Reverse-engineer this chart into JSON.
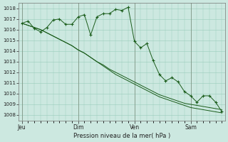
{
  "background_color": "#cce8e0",
  "grid_color": "#99ccbb",
  "line_color": "#1a5c1a",
  "marker_color": "#1a5c1a",
  "xlabel": "Pression niveau de la mer( hPa )",
  "ylim": [
    1007.5,
    1018.5
  ],
  "yticks": [
    1008,
    1009,
    1010,
    1011,
    1012,
    1013,
    1014,
    1015,
    1016,
    1017,
    1018
  ],
  "xtick_labels": [
    "|Jeu",
    "|Dim",
    "|Ven",
    "|Sam"
  ],
  "xtick_positions": [
    0,
    9,
    18,
    27
  ],
  "total_points": 33,
  "series1_y": [
    1016.6,
    1016.4,
    1016.2,
    1016.0,
    1015.7,
    1015.4,
    1015.1,
    1014.8,
    1014.5,
    1014.1,
    1013.8,
    1013.4,
    1013.0,
    1012.7,
    1012.3,
    1012.0,
    1011.7,
    1011.4,
    1011.1,
    1010.8,
    1010.5,
    1010.2,
    1009.9,
    1009.7,
    1009.5,
    1009.3,
    1009.1,
    1009.0,
    1008.9,
    1008.8,
    1008.7,
    1008.6,
    1008.5
  ],
  "series2_y": [
    1016.6,
    1016.4,
    1016.2,
    1016.0,
    1015.7,
    1015.4,
    1015.1,
    1014.8,
    1014.5,
    1014.1,
    1013.8,
    1013.4,
    1013.0,
    1012.6,
    1012.2,
    1011.8,
    1011.5,
    1011.2,
    1010.9,
    1010.6,
    1010.3,
    1010.0,
    1009.7,
    1009.5,
    1009.3,
    1009.1,
    1008.9,
    1008.7,
    1008.6,
    1008.5,
    1008.4,
    1008.3,
    1008.2
  ],
  "series3_x": [
    0,
    1,
    2,
    3,
    4,
    5,
    6,
    7,
    8,
    9,
    10,
    11,
    12,
    13,
    14,
    15,
    16,
    17,
    18,
    19,
    20,
    21,
    22,
    23,
    24,
    25,
    26,
    27,
    28,
    29,
    30,
    31,
    32
  ],
  "series3_y": [
    1016.6,
    1016.8,
    1016.1,
    1015.8,
    1016.2,
    1016.9,
    1017.0,
    1016.5,
    1016.5,
    1017.2,
    1017.4,
    1015.5,
    1017.2,
    1017.5,
    1017.5,
    1017.9,
    1017.8,
    1018.1,
    1014.9,
    1014.3,
    1014.7,
    1013.1,
    1011.8,
    1011.2,
    1011.5,
    1011.1,
    1010.2,
    1009.8,
    1009.2,
    1009.8,
    1009.8,
    1009.2,
    1008.3
  ]
}
